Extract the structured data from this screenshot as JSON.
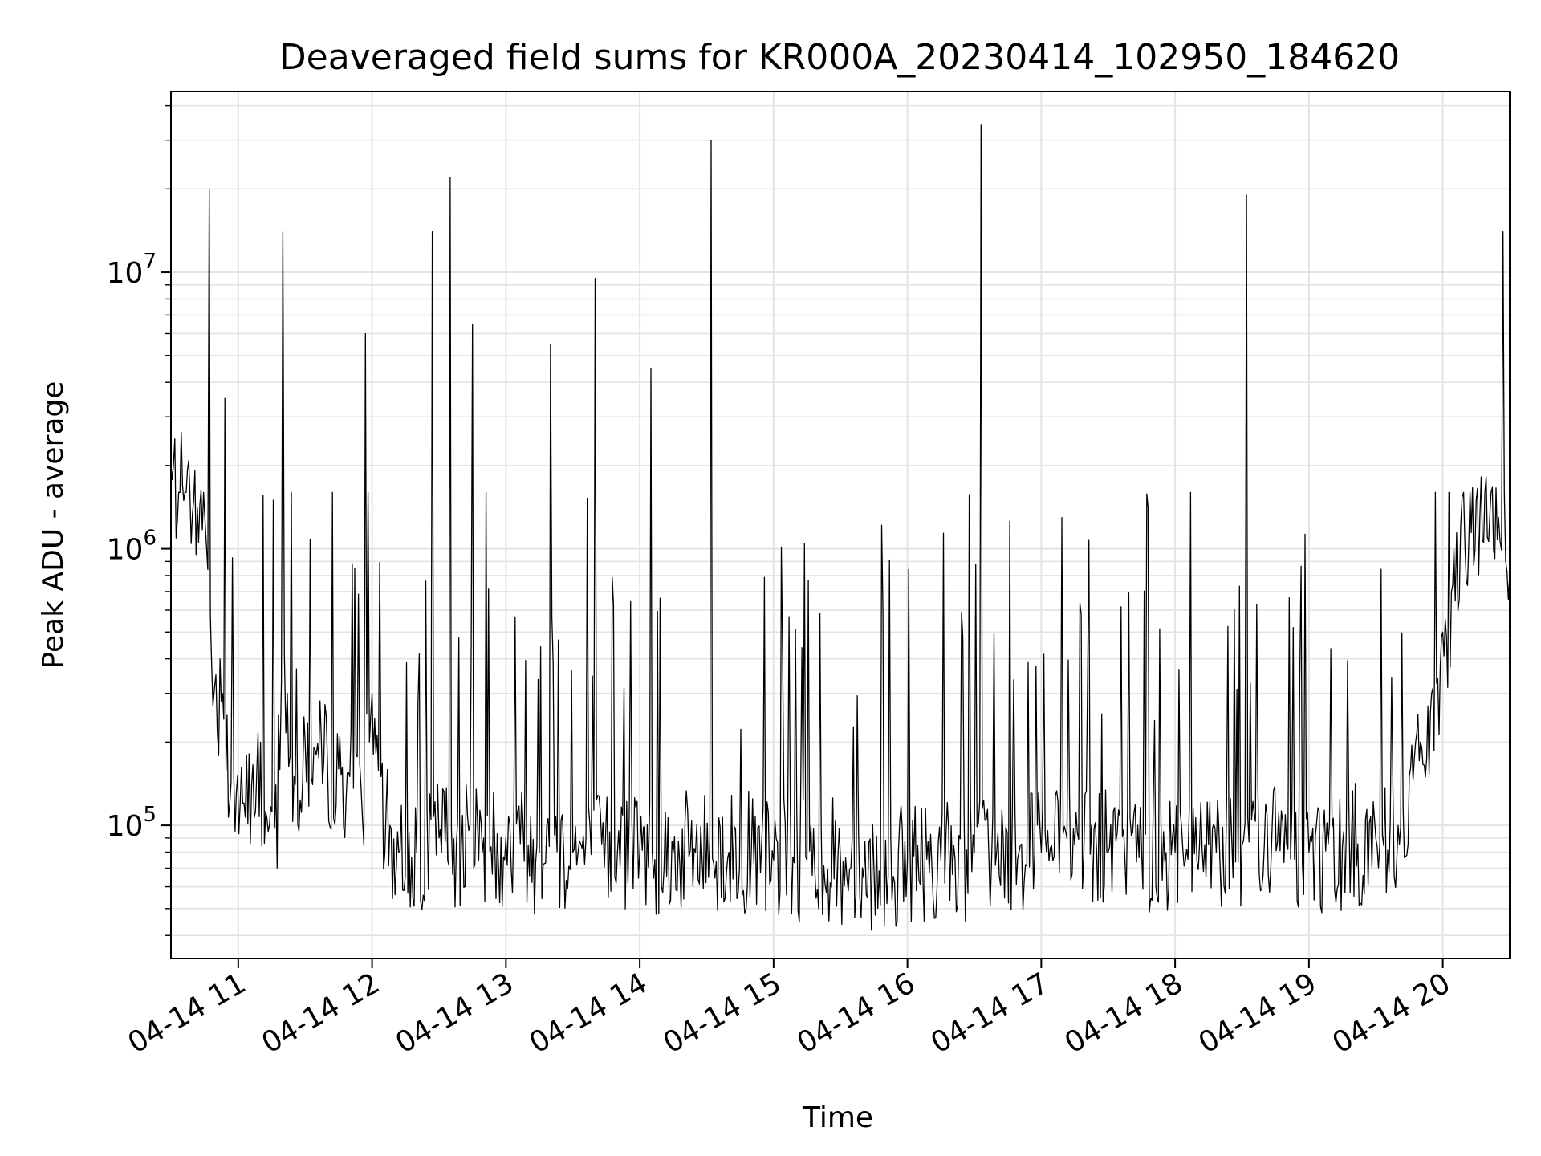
{
  "chart_data": {
    "type": "line",
    "title": "Deaveraged field sums for KR000A_20230414_102950_184620",
    "xlabel": "Time",
    "ylabel": "Peak ADU - average",
    "y_scale": "log",
    "xlim": [
      "2023-04-14 10:29:50",
      "2023-04-14 20:30:00"
    ],
    "ylim": [
      33000,
      45000000
    ],
    "x_tick_labels": [
      "04-14 11",
      "04-14 12",
      "04-14 13",
      "04-14 14",
      "04-14 15",
      "04-14 16",
      "04-14 17",
      "04-14 18",
      "04-14 19",
      "04-14 20"
    ],
    "x_tick_times": [
      "2023-04-14 11:00",
      "2023-04-14 12:00",
      "2023-04-14 13:00",
      "2023-04-14 14:00",
      "2023-04-14 15:00",
      "2023-04-14 16:00",
      "2023-04-14 17:00",
      "2023-04-14 18:00",
      "2023-04-14 19:00",
      "2023-04-14 20:00"
    ],
    "y_ticks": [
      {
        "value": 100000,
        "base": "10",
        "exp": "5"
      },
      {
        "value": 1000000,
        "base": "10",
        "exp": "6"
      },
      {
        "value": 10000000,
        "base": "10",
        "exp": "7"
      }
    ],
    "grid": true,
    "line_color": "#000000",
    "series": [
      {
        "x": [
          "2023-04-14 10:29:50",
          "2023-04-14 10:35",
          "2023-04-14 10:40",
          "2023-04-14 10:45",
          "2023-04-14 10:47",
          "2023-04-14 10:48",
          "2023-04-14 10:50",
          "2023-04-14 10:53",
          "2023-04-14 10:54",
          "2023-04-14 10:55",
          "2023-04-14 10:58",
          "2023-04-14 11:02",
          "2023-04-14 11:06",
          "2023-04-14 11:10",
          "2023-04-14 11:14",
          "2023-04-14 11:18",
          "2023-04-14 11:20",
          "2023-04-14 11:22",
          "2023-04-14 11:25",
          "2023-04-14 11:30",
          "2023-04-14 11:35",
          "2023-04-14 11:40",
          "2023-04-14 11:45",
          "2023-04-14 11:50",
          "2023-04-14 11:55",
          "2023-04-14 11:57",
          "2023-04-14 12:00",
          "2023-04-14 12:04",
          "2023-04-14 12:08",
          "2023-04-14 12:12",
          "2023-04-14 12:20",
          "2023-04-14 12:27",
          "2023-04-14 12:30",
          "2023-04-14 12:35",
          "2023-04-14 12:40",
          "2023-04-14 12:45",
          "2023-04-14 12:50",
          "2023-04-14 12:55",
          "2023-04-14 13:00",
          "2023-04-14 13:10",
          "2023-04-14 13:15",
          "2023-04-14 13:20",
          "2023-04-14 13:30",
          "2023-04-14 13:40",
          "2023-04-14 13:50",
          "2023-04-14 14:00",
          "2023-04-14 14:05",
          "2023-04-14 14:15",
          "2023-04-14 14:25",
          "2023-04-14 14:32",
          "2023-04-14 14:40",
          "2023-04-14 14:50",
          "2023-04-14 15:00",
          "2023-04-14 15:15",
          "2023-04-14 15:30",
          "2023-04-14 15:45",
          "2023-04-14 16:00",
          "2023-04-14 16:15",
          "2023-04-14 16:30",
          "2023-04-14 16:33",
          "2023-04-14 16:40",
          "2023-04-14 16:50",
          "2023-04-14 17:00",
          "2023-04-14 17:15",
          "2023-04-14 17:30",
          "2023-04-14 17:45",
          "2023-04-14 18:00",
          "2023-04-14 18:15",
          "2023-04-14 18:30",
          "2023-04-14 18:32",
          "2023-04-14 18:40",
          "2023-04-14 18:50",
          "2023-04-14 19:00",
          "2023-04-14 19:15",
          "2023-04-14 19:30",
          "2023-04-14 19:40",
          "2023-04-14 19:45",
          "2023-04-14 19:50",
          "2023-04-14 19:55",
          "2023-04-14 20:00",
          "2023-04-14 20:05",
          "2023-04-14 20:08",
          "2023-04-14 20:10",
          "2023-04-14 20:15",
          "2023-04-14 20:20",
          "2023-04-14 20:25",
          "2023-04-14 20:27",
          "2023-04-14 20:30"
        ],
        "values": [
          2000000,
          1700000,
          1500000,
          1300000,
          20000000,
          400000,
          350000,
          300000,
          3500000,
          250000,
          150000,
          120000,
          140000,
          200000,
          100000,
          250000,
          14000000,
          300000,
          150000,
          200000,
          180000,
          170000,
          160000,
          150000,
          140000,
          6000000,
          300000,
          150000,
          100000,
          80000,
          80000,
          14000000,
          90000,
          22000000,
          85000,
          6500000,
          90000,
          85000,
          90000,
          85000,
          80000,
          5500000,
          80000,
          9500000,
          80000,
          80000,
          4500000,
          80000,
          80000,
          30000000,
          80000,
          80000,
          75000,
          75000,
          75000,
          70000,
          75000,
          75000,
          80000,
          34000000,
          80000,
          80000,
          80000,
          85000,
          80000,
          80000,
          80000,
          85000,
          85000,
          19000000,
          85000,
          85000,
          80000,
          85000,
          90000,
          100000,
          150000,
          200000,
          300000,
          500000,
          1000000,
          1200000,
          1000000,
          1500000,
          1100000,
          1300000,
          14000000,
          800000
        ]
      }
    ]
  }
}
